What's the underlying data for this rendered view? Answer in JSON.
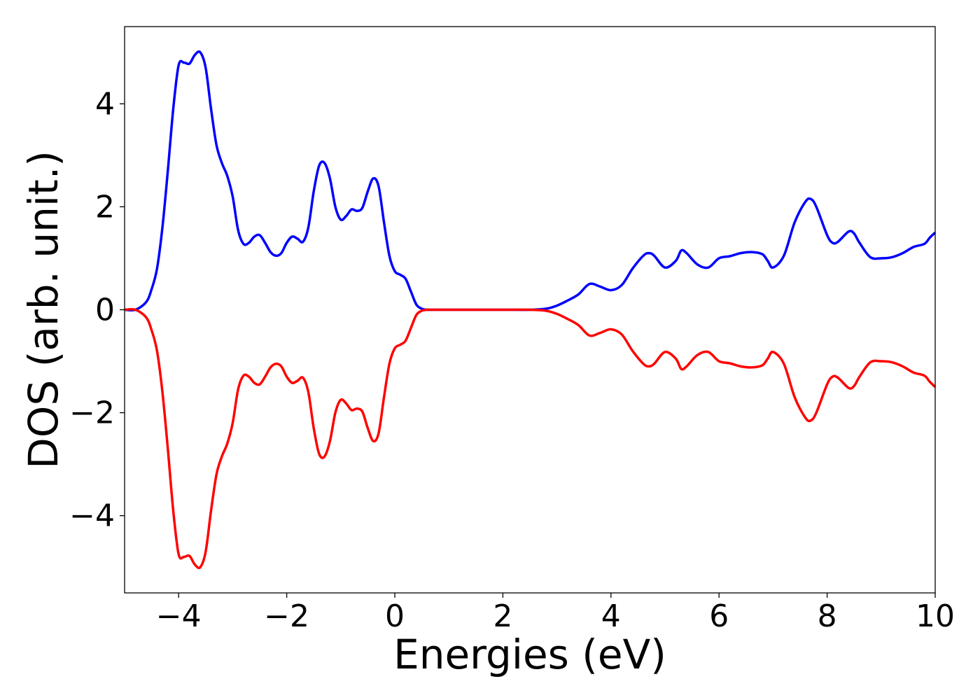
{
  "chart_data": {
    "type": "line",
    "title": "",
    "xlabel": "Energies (eV)",
    "ylabel": "DOS (arb. unit.)",
    "xlim": [
      -5,
      10
    ],
    "ylim": [
      -5.5,
      5.5
    ],
    "grid": false,
    "legend": "none",
    "x_ticks": [
      -4,
      -2,
      0,
      2,
      4,
      6,
      8,
      10
    ],
    "x_tick_labels": [
      "−4",
      "−2",
      "0",
      "2",
      "4",
      "6",
      "8",
      "10"
    ],
    "y_ticks": [
      -4,
      -2,
      0,
      2,
      4
    ],
    "y_tick_labels": [
      "−4",
      "−2",
      "0",
      "2",
      "4"
    ],
    "series": [
      {
        "color": "#0000ff",
        "x": [
          -5.0,
          -4.8,
          -4.6,
          -4.5,
          -4.4,
          -4.3,
          -4.2,
          -4.1,
          -4.0,
          -3.9,
          -3.8,
          -3.7,
          -3.6,
          -3.5,
          -3.4,
          -3.3,
          -3.2,
          -3.1,
          -3.0,
          -2.9,
          -2.8,
          -2.7,
          -2.6,
          -2.5,
          -2.4,
          -2.3,
          -2.2,
          -2.1,
          -2.0,
          -1.9,
          -1.8,
          -1.7,
          -1.6,
          -1.5,
          -1.4,
          -1.3,
          -1.2,
          -1.1,
          -1.0,
          -0.9,
          -0.8,
          -0.7,
          -0.6,
          -0.5,
          -0.4,
          -0.3,
          -0.2,
          -0.1,
          0.0,
          0.1,
          0.2,
          0.3,
          0.4,
          0.5,
          0.6,
          0.7,
          0.8,
          1.0,
          1.5,
          2.0,
          2.5,
          2.8,
          3.0,
          3.2,
          3.4,
          3.6,
          3.8,
          4.0,
          4.2,
          4.4,
          4.6,
          4.7,
          4.8,
          5.0,
          5.2,
          5.3,
          5.4,
          5.6,
          5.8,
          6.0,
          6.2,
          6.4,
          6.6,
          6.8,
          6.9,
          7.0,
          7.2,
          7.4,
          7.6,
          7.7,
          7.8,
          8.0,
          8.1,
          8.2,
          8.4,
          8.5,
          8.6,
          8.8,
          9.0,
          9.2,
          9.4,
          9.6,
          9.8,
          9.9,
          10.0
        ],
        "y": [
          0.0,
          0.0,
          0.15,
          0.4,
          0.8,
          1.6,
          2.7,
          3.9,
          4.75,
          4.8,
          4.78,
          4.95,
          5.0,
          4.7,
          3.9,
          3.2,
          2.85,
          2.6,
          2.2,
          1.55,
          1.28,
          1.3,
          1.42,
          1.45,
          1.3,
          1.12,
          1.05,
          1.1,
          1.3,
          1.42,
          1.38,
          1.32,
          1.6,
          2.3,
          2.8,
          2.85,
          2.55,
          2.0,
          1.75,
          1.82,
          1.95,
          1.92,
          1.98,
          2.3,
          2.55,
          2.4,
          1.7,
          1.05,
          0.75,
          0.68,
          0.6,
          0.35,
          0.1,
          0.02,
          0.0,
          0.0,
          0.0,
          0.0,
          0.0,
          0.0,
          0.0,
          0.02,
          0.08,
          0.18,
          0.3,
          0.5,
          0.45,
          0.38,
          0.48,
          0.8,
          1.05,
          1.1,
          1.05,
          0.82,
          0.95,
          1.15,
          1.1,
          0.88,
          0.82,
          1.0,
          1.04,
          1.1,
          1.12,
          1.08,
          0.95,
          0.82,
          1.05,
          1.7,
          2.1,
          2.15,
          2.0,
          1.45,
          1.3,
          1.32,
          1.52,
          1.48,
          1.3,
          1.02,
          1.0,
          1.02,
          1.1,
          1.22,
          1.28,
          1.4,
          1.5
        ]
      },
      {
        "color": "#ff0000",
        "x": [
          -5.0,
          -4.8,
          -4.6,
          -4.5,
          -4.4,
          -4.3,
          -4.2,
          -4.1,
          -4.0,
          -3.9,
          -3.8,
          -3.7,
          -3.6,
          -3.5,
          -3.4,
          -3.3,
          -3.2,
          -3.1,
          -3.0,
          -2.9,
          -2.8,
          -2.7,
          -2.6,
          -2.5,
          -2.4,
          -2.3,
          -2.2,
          -2.1,
          -2.0,
          -1.9,
          -1.8,
          -1.7,
          -1.6,
          -1.5,
          -1.4,
          -1.3,
          -1.2,
          -1.1,
          -1.0,
          -0.9,
          -0.8,
          -0.7,
          -0.6,
          -0.5,
          -0.4,
          -0.3,
          -0.2,
          -0.1,
          0.0,
          0.1,
          0.2,
          0.3,
          0.4,
          0.5,
          0.6,
          0.7,
          0.8,
          1.0,
          1.5,
          2.0,
          2.5,
          2.8,
          3.0,
          3.2,
          3.4,
          3.6,
          3.8,
          4.0,
          4.2,
          4.4,
          4.6,
          4.7,
          4.8,
          5.0,
          5.2,
          5.3,
          5.4,
          5.6,
          5.8,
          6.0,
          6.2,
          6.4,
          6.6,
          6.8,
          6.9,
          7.0,
          7.2,
          7.4,
          7.6,
          7.7,
          7.8,
          8.0,
          8.1,
          8.2,
          8.4,
          8.5,
          8.6,
          8.8,
          9.0,
          9.2,
          9.4,
          9.6,
          9.8,
          9.9,
          10.0
        ],
        "y": [
          0.0,
          0.0,
          -0.15,
          -0.4,
          -0.8,
          -1.6,
          -2.7,
          -3.9,
          -4.75,
          -4.8,
          -4.78,
          -4.95,
          -5.0,
          -4.7,
          -3.9,
          -3.2,
          -2.85,
          -2.6,
          -2.2,
          -1.55,
          -1.28,
          -1.3,
          -1.42,
          -1.45,
          -1.3,
          -1.12,
          -1.05,
          -1.1,
          -1.3,
          -1.42,
          -1.38,
          -1.32,
          -1.6,
          -2.3,
          -2.8,
          -2.85,
          -2.55,
          -2.0,
          -1.75,
          -1.82,
          -1.95,
          -1.92,
          -1.98,
          -2.3,
          -2.55,
          -2.4,
          -1.7,
          -1.05,
          -0.75,
          -0.68,
          -0.6,
          -0.35,
          -0.1,
          -0.02,
          0.0,
          0.0,
          0.0,
          0.0,
          0.0,
          0.0,
          0.0,
          -0.02,
          -0.08,
          -0.18,
          -0.3,
          -0.5,
          -0.45,
          -0.38,
          -0.48,
          -0.8,
          -1.05,
          -1.1,
          -1.05,
          -0.82,
          -0.95,
          -1.15,
          -1.1,
          -0.88,
          -0.82,
          -1.0,
          -1.04,
          -1.1,
          -1.12,
          -1.08,
          -0.95,
          -0.82,
          -1.05,
          -1.7,
          -2.1,
          -2.15,
          -2.0,
          -1.45,
          -1.3,
          -1.32,
          -1.52,
          -1.48,
          -1.3,
          -1.02,
          -1.0,
          -1.02,
          -1.1,
          -1.22,
          -1.28,
          -1.4,
          -1.5
        ]
      }
    ]
  }
}
